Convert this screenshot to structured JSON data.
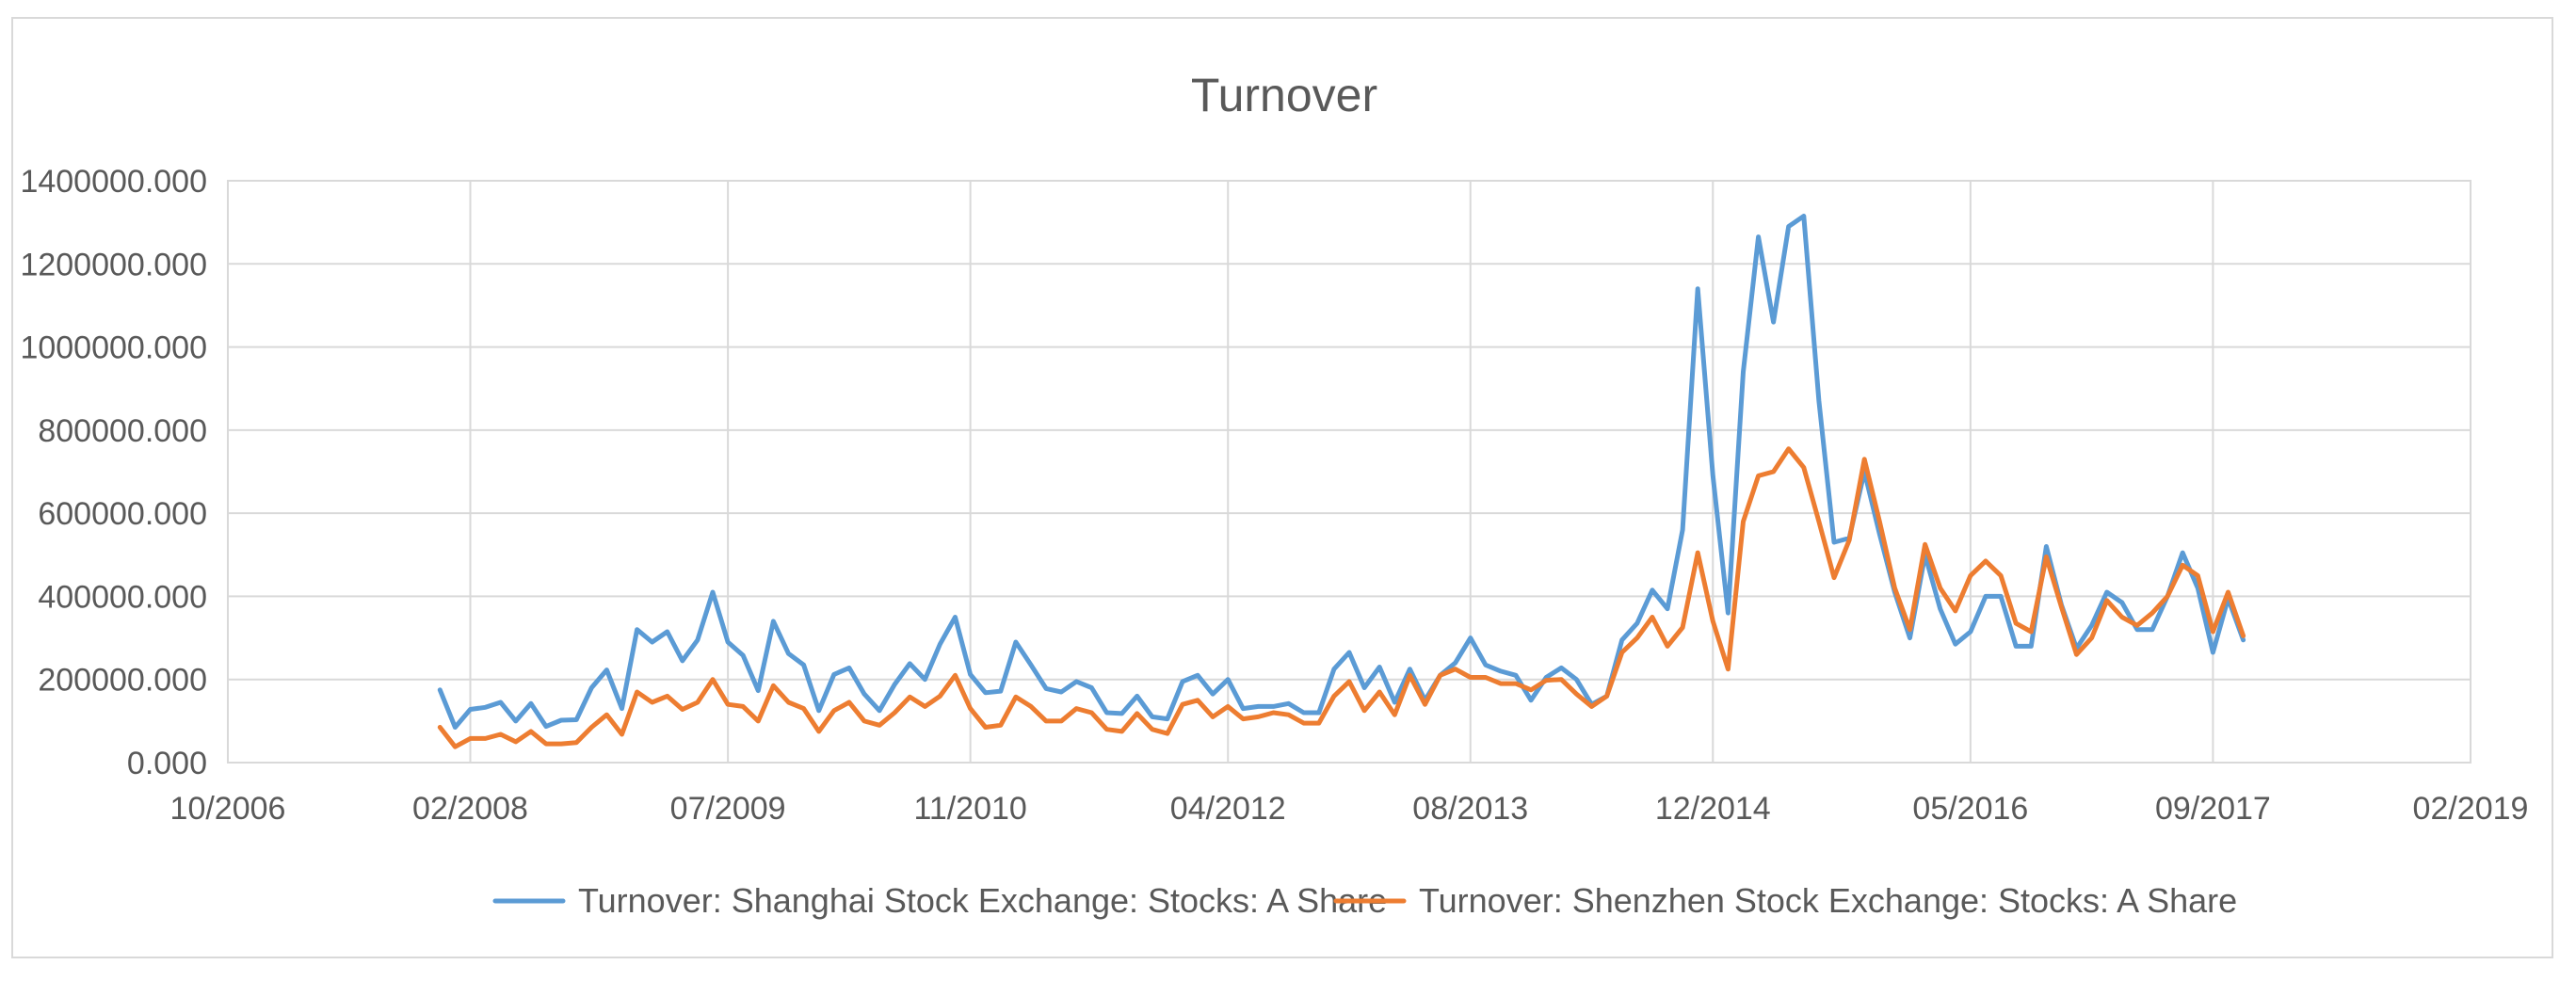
{
  "chart_data": {
    "type": "line",
    "title": "Turnover",
    "xlabel": "",
    "ylabel": "",
    "ylim": [
      0,
      1400000
    ],
    "yticks": [
      "0.000",
      "200000.000",
      "400000.000",
      "600000.000",
      "800000.000",
      "1000000.000",
      "1200000.000",
      "1400000.000"
    ],
    "xlim": [
      "2006-10",
      "2019-02"
    ],
    "xticks": [
      "10/2006",
      "02/2008",
      "07/2009",
      "11/2010",
      "04/2012",
      "08/2013",
      "12/2014",
      "05/2016",
      "09/2017",
      "02/2019"
    ],
    "grid": true,
    "legend_position": "bottom",
    "series": [
      {
        "name": "Turnover: Shanghai Stock Exchange: Stocks: A Share",
        "color": "#5b9bd5",
        "x": [
          "2007-12",
          "2008-01",
          "2008-02",
          "2008-03",
          "2008-04",
          "2008-05",
          "2008-06",
          "2008-07",
          "2008-08",
          "2008-09",
          "2008-10",
          "2008-11",
          "2008-12",
          "2009-01",
          "2009-02",
          "2009-03",
          "2009-04",
          "2009-05",
          "2009-06",
          "2009-07",
          "2009-08",
          "2009-09",
          "2009-10",
          "2009-11",
          "2009-12",
          "2010-01",
          "2010-02",
          "2010-03",
          "2010-04",
          "2010-05",
          "2010-06",
          "2010-07",
          "2010-08",
          "2010-09",
          "2010-10",
          "2010-11",
          "2010-12",
          "2011-01",
          "2011-02",
          "2011-03",
          "2011-04",
          "2011-05",
          "2011-06",
          "2011-07",
          "2011-08",
          "2011-09",
          "2011-10",
          "2011-11",
          "2011-12",
          "2012-01",
          "2012-02",
          "2012-03",
          "2012-04",
          "2012-05",
          "2012-06",
          "2012-07",
          "2012-08",
          "2012-09",
          "2012-10",
          "2012-11",
          "2012-12",
          "2013-01",
          "2013-02",
          "2013-03",
          "2013-04",
          "2013-05",
          "2013-06",
          "2013-07",
          "2013-08",
          "2013-09",
          "2013-10",
          "2013-11",
          "2013-12",
          "2014-01",
          "2014-02",
          "2014-03",
          "2014-04",
          "2014-05",
          "2014-06",
          "2014-07",
          "2014-08",
          "2014-09",
          "2014-10",
          "2014-11",
          "2014-12",
          "2015-01",
          "2015-02",
          "2015-03",
          "2015-04",
          "2015-05",
          "2015-06",
          "2015-07",
          "2015-08",
          "2015-09",
          "2015-10",
          "2015-11",
          "2015-12",
          "2016-01",
          "2016-02",
          "2016-03",
          "2016-04",
          "2016-05",
          "2016-06",
          "2016-07",
          "2016-08",
          "2016-09",
          "2016-10",
          "2016-11",
          "2016-12",
          "2017-01",
          "2017-02",
          "2017-03",
          "2017-04",
          "2017-05",
          "2017-06",
          "2017-07",
          "2017-08",
          "2017-09",
          "2017-10",
          "2017-11"
        ],
        "values": [
          175000,
          85000,
          128000,
          133000,
          145000,
          100000,
          142000,
          87000,
          102000,
          103000,
          180000,
          223000,
          130000,
          320000,
          290000,
          315000,
          245000,
          295000,
          410000,
          290000,
          258000,
          173000,
          340000,
          262000,
          235000,
          125000,
          212000,
          228000,
          165000,
          125000,
          188000,
          238000,
          200000,
          285000,
          350000,
          212000,
          168000,
          172000,
          290000,
          235000,
          178000,
          170000,
          195000,
          180000,
          120000,
          118000,
          160000,
          110000,
          105000,
          195000,
          210000,
          165000,
          200000,
          130000,
          135000,
          135000,
          142000,
          120000,
          120000,
          225000,
          265000,
          180000,
          230000,
          145000,
          225000,
          150000,
          210000,
          240000,
          300000,
          235000,
          220000,
          210000,
          150000,
          205000,
          228000,
          200000,
          140000,
          160000,
          295000,
          335000,
          415000,
          370000,
          560000,
          1140000,
          690000,
          360000,
          940000,
          1265000,
          1060000,
          1290000,
          1315000,
          870000,
          530000,
          540000,
          700000,
          550000,
          410000,
          300000,
          500000,
          370000,
          285000,
          315000,
          400000,
          400000,
          280000,
          280000,
          520000,
          380000,
          275000,
          330000,
          410000,
          385000,
          320000,
          320000,
          400000,
          505000,
          420000,
          265000,
          395000,
          295000
        ]
      },
      {
        "name": "Turnover: Shenzhen Stock Exchange: Stocks: A Share",
        "color": "#ed7d31",
        "x": [
          "2007-12",
          "2008-01",
          "2008-02",
          "2008-03",
          "2008-04",
          "2008-05",
          "2008-06",
          "2008-07",
          "2008-08",
          "2008-09",
          "2008-10",
          "2008-11",
          "2008-12",
          "2009-01",
          "2009-02",
          "2009-03",
          "2009-04",
          "2009-05",
          "2009-06",
          "2009-07",
          "2009-08",
          "2009-09",
          "2009-10",
          "2009-11",
          "2009-12",
          "2010-01",
          "2010-02",
          "2010-03",
          "2010-04",
          "2010-05",
          "2010-06",
          "2010-07",
          "2010-08",
          "2010-09",
          "2010-10",
          "2010-11",
          "2010-12",
          "2011-01",
          "2011-02",
          "2011-03",
          "2011-04",
          "2011-05",
          "2011-06",
          "2011-07",
          "2011-08",
          "2011-09",
          "2011-10",
          "2011-11",
          "2011-12",
          "2012-01",
          "2012-02",
          "2012-03",
          "2012-04",
          "2012-05",
          "2012-06",
          "2012-07",
          "2012-08",
          "2012-09",
          "2012-10",
          "2012-11",
          "2012-12",
          "2013-01",
          "2013-02",
          "2013-03",
          "2013-04",
          "2013-05",
          "2013-06",
          "2013-07",
          "2013-08",
          "2013-09",
          "2013-10",
          "2013-11",
          "2013-12",
          "2014-01",
          "2014-02",
          "2014-03",
          "2014-04",
          "2014-05",
          "2014-06",
          "2014-07",
          "2014-08",
          "2014-09",
          "2014-10",
          "2014-11",
          "2014-12",
          "2015-01",
          "2015-02",
          "2015-03",
          "2015-04",
          "2015-05",
          "2015-06",
          "2015-07",
          "2015-08",
          "2015-09",
          "2015-10",
          "2015-11",
          "2015-12",
          "2016-01",
          "2016-02",
          "2016-03",
          "2016-04",
          "2016-05",
          "2016-06",
          "2016-07",
          "2016-08",
          "2016-09",
          "2016-10",
          "2016-11",
          "2016-12",
          "2017-01",
          "2017-02",
          "2017-03",
          "2017-04",
          "2017-05",
          "2017-06",
          "2017-07",
          "2017-08",
          "2017-09",
          "2017-10",
          "2017-11"
        ],
        "values": [
          85000,
          38000,
          58000,
          58000,
          68000,
          50000,
          75000,
          45000,
          45000,
          48000,
          85000,
          115000,
          68000,
          170000,
          145000,
          160000,
          128000,
          145000,
          200000,
          140000,
          135000,
          100000,
          185000,
          145000,
          130000,
          75000,
          125000,
          145000,
          100000,
          90000,
          120000,
          158000,
          135000,
          160000,
          210000,
          130000,
          85000,
          90000,
          158000,
          135000,
          100000,
          100000,
          130000,
          120000,
          80000,
          75000,
          118000,
          80000,
          70000,
          140000,
          150000,
          110000,
          135000,
          105000,
          110000,
          120000,
          115000,
          95000,
          95000,
          160000,
          195000,
          125000,
          170000,
          115000,
          210000,
          140000,
          210000,
          225000,
          205000,
          205000,
          190000,
          190000,
          175000,
          198000,
          200000,
          165000,
          135000,
          160000,
          265000,
          300000,
          350000,
          280000,
          325000,
          505000,
          340000,
          225000,
          580000,
          690000,
          700000,
          755000,
          710000,
          580000,
          445000,
          535000,
          730000,
          580000,
          420000,
          320000,
          525000,
          420000,
          365000,
          450000,
          485000,
          450000,
          335000,
          315000,
          495000,
          375000,
          260000,
          300000,
          390000,
          350000,
          330000,
          360000,
          400000,
          475000,
          450000,
          315000,
          410000,
          305000
        ]
      }
    ]
  }
}
